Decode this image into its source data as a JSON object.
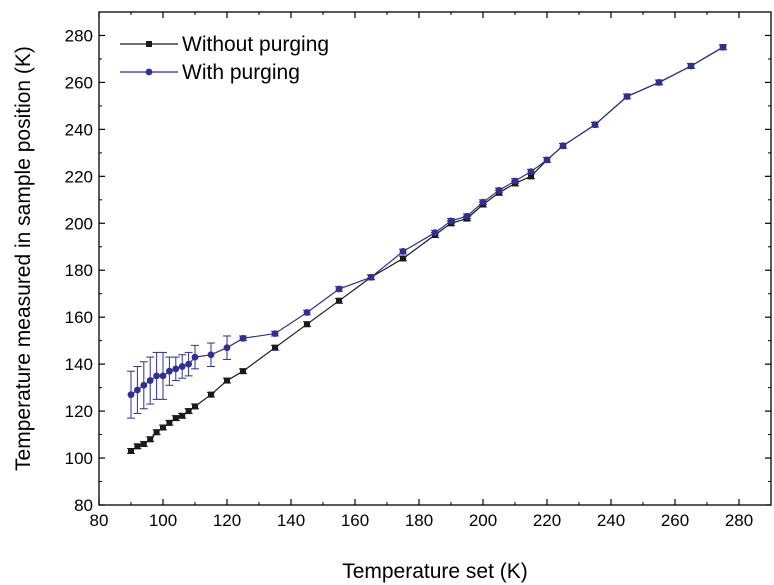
{
  "chart_data": {
    "type": "line",
    "xlabel": "Temperature set (K)",
    "ylabel": "Temperature measured in sample position (K)",
    "xlim": [
      80,
      290
    ],
    "ylim": [
      80,
      290
    ],
    "x_ticks": [
      80,
      100,
      120,
      140,
      160,
      180,
      200,
      220,
      240,
      260,
      280
    ],
    "y_ticks": [
      80,
      100,
      120,
      140,
      160,
      180,
      200,
      220,
      240,
      260,
      280
    ],
    "legend_position": "top-left",
    "grid": false,
    "series": [
      {
        "name": "Without purging",
        "color": "#1a1a1a",
        "marker": "square",
        "x": [
          90,
          92,
          94,
          96,
          98,
          100,
          102,
          104,
          106,
          108,
          110,
          115,
          120,
          125,
          135,
          145,
          155,
          165,
          175,
          185,
          190,
          195,
          200,
          205,
          210,
          215,
          220,
          225,
          235,
          245,
          255,
          265,
          275
        ],
        "y": [
          103,
          105,
          106,
          108,
          111,
          113,
          115,
          117,
          118,
          120,
          122,
          127,
          133,
          137,
          147,
          157,
          167,
          177,
          185,
          195,
          200,
          202,
          208,
          213,
          217,
          220,
          227,
          233,
          242,
          254,
          260,
          267,
          275
        ],
        "err": [
          1,
          1,
          1,
          1,
          1,
          1,
          1,
          1,
          1,
          1,
          1,
          1,
          1,
          1,
          1,
          1,
          1,
          1,
          1,
          1,
          1,
          1,
          1,
          1,
          1,
          1,
          1,
          1,
          1,
          1,
          1,
          1,
          1
        ]
      },
      {
        "name": "With purging",
        "color": "#2e3192",
        "marker": "circle",
        "x": [
          90,
          92,
          94,
          96,
          98,
          100,
          102,
          104,
          106,
          108,
          110,
          115,
          120,
          125,
          135,
          145,
          155,
          165,
          175,
          185,
          190,
          195,
          200,
          205,
          210,
          215,
          220,
          225,
          235,
          245,
          255,
          265,
          275
        ],
        "y": [
          127,
          129,
          131,
          133,
          135,
          135,
          137,
          138,
          139,
          140,
          143,
          144,
          147,
          151,
          153,
          162,
          172,
          177,
          188,
          196,
          201,
          203,
          209,
          214,
          218,
          222,
          227,
          233,
          242,
          254,
          260,
          267,
          275
        ],
        "err": [
          10,
          10,
          10,
          10,
          10,
          10,
          6,
          5,
          5,
          5,
          5,
          5,
          5,
          1,
          1,
          1,
          1,
          1,
          1,
          1,
          1,
          1,
          1,
          1,
          1,
          1,
          1,
          1,
          1,
          1,
          1,
          1,
          1
        ]
      }
    ]
  }
}
